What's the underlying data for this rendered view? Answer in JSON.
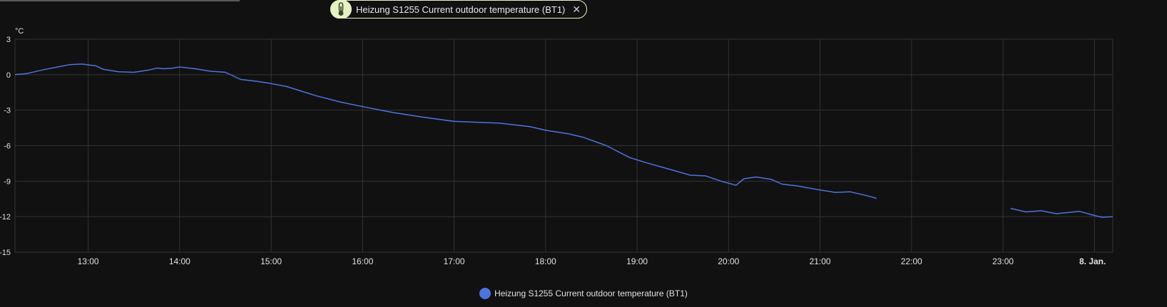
{
  "filter_chip": {
    "label": "Heizung S1255 Current outdoor temperature (BT1)",
    "icon": "thermometer-icon",
    "close_glyph": "✕"
  },
  "colors": {
    "background": "#111111",
    "series": "#4e74dc",
    "grid": "#333333",
    "chip_icon_bg": "#e6f2c3"
  },
  "chart_data": {
    "type": "line",
    "ylabel": "°C",
    "ylim": [
      -15,
      3
    ],
    "y_ticks": [
      "3",
      "0",
      "-3",
      "-6",
      "-9",
      "-12",
      "-15"
    ],
    "x_ticks": [
      "13:00",
      "14:00",
      "15:00",
      "16:00",
      "17:00",
      "18:00",
      "19:00",
      "20:00",
      "21:00",
      "22:00",
      "23:00",
      "8. Jan."
    ],
    "xlim": [
      "12:12",
      "24:12"
    ],
    "grid": true,
    "legend": "bottom-center",
    "series": [
      {
        "name": "Heizung S1255 Current outdoor temperature (BT1)",
        "segments": [
          [
            [
              "12:12",
              0.0
            ],
            [
              "12:20",
              0.1
            ],
            [
              "12:30",
              0.4
            ],
            [
              "12:40",
              0.65
            ],
            [
              "12:48",
              0.85
            ],
            [
              "12:56",
              0.9
            ],
            [
              "13:05",
              0.75
            ],
            [
              "13:10",
              0.45
            ],
            [
              "13:20",
              0.25
            ],
            [
              "13:30",
              0.2
            ],
            [
              "13:40",
              0.4
            ],
            [
              "13:45",
              0.55
            ],
            [
              "13:50",
              0.5
            ],
            [
              "13:55",
              0.55
            ],
            [
              "14:00",
              0.65
            ],
            [
              "14:10",
              0.5
            ],
            [
              "14:20",
              0.3
            ],
            [
              "14:30",
              0.2
            ],
            [
              "14:40",
              -0.4
            ],
            [
              "14:50",
              -0.55
            ],
            [
              "15:00",
              -0.75
            ],
            [
              "15:10",
              -1.0
            ],
            [
              "15:20",
              -1.4
            ],
            [
              "15:30",
              -1.8
            ],
            [
              "15:45",
              -2.3
            ],
            [
              "16:00",
              -2.7
            ],
            [
              "16:20",
              -3.2
            ],
            [
              "16:40",
              -3.6
            ],
            [
              "17:00",
              -3.95
            ],
            [
              "17:30",
              -4.1
            ],
            [
              "17:50",
              -4.4
            ],
            [
              "18:00",
              -4.7
            ],
            [
              "18:15",
              -5.0
            ],
            [
              "18:25",
              -5.3
            ],
            [
              "18:40",
              -6.0
            ],
            [
              "18:55",
              -7.0
            ],
            [
              "19:05",
              -7.4
            ],
            [
              "19:20",
              -7.95
            ],
            [
              "19:35",
              -8.5
            ],
            [
              "19:45",
              -8.55
            ],
            [
              "19:55",
              -9.0
            ],
            [
              "20:05",
              -9.35
            ],
            [
              "20:10",
              -8.8
            ],
            [
              "20:18",
              -8.65
            ],
            [
              "20:28",
              -8.85
            ],
            [
              "20:35",
              -9.25
            ],
            [
              "20:45",
              -9.4
            ],
            [
              "21:00",
              -9.75
            ],
            [
              "21:10",
              -9.95
            ],
            [
              "21:20",
              -9.9
            ],
            [
              "21:30",
              -10.2
            ],
            [
              "21:37",
              -10.45
            ]
          ],
          [
            [
              "23:05",
              -11.3
            ],
            [
              "23:15",
              -11.6
            ],
            [
              "23:25",
              -11.5
            ],
            [
              "23:35",
              -11.75
            ],
            [
              "23:50",
              -11.55
            ],
            [
              "24:00",
              -11.9
            ],
            [
              "24:05",
              -12.05
            ],
            [
              "24:12",
              -12.0
            ]
          ]
        ]
      }
    ]
  }
}
